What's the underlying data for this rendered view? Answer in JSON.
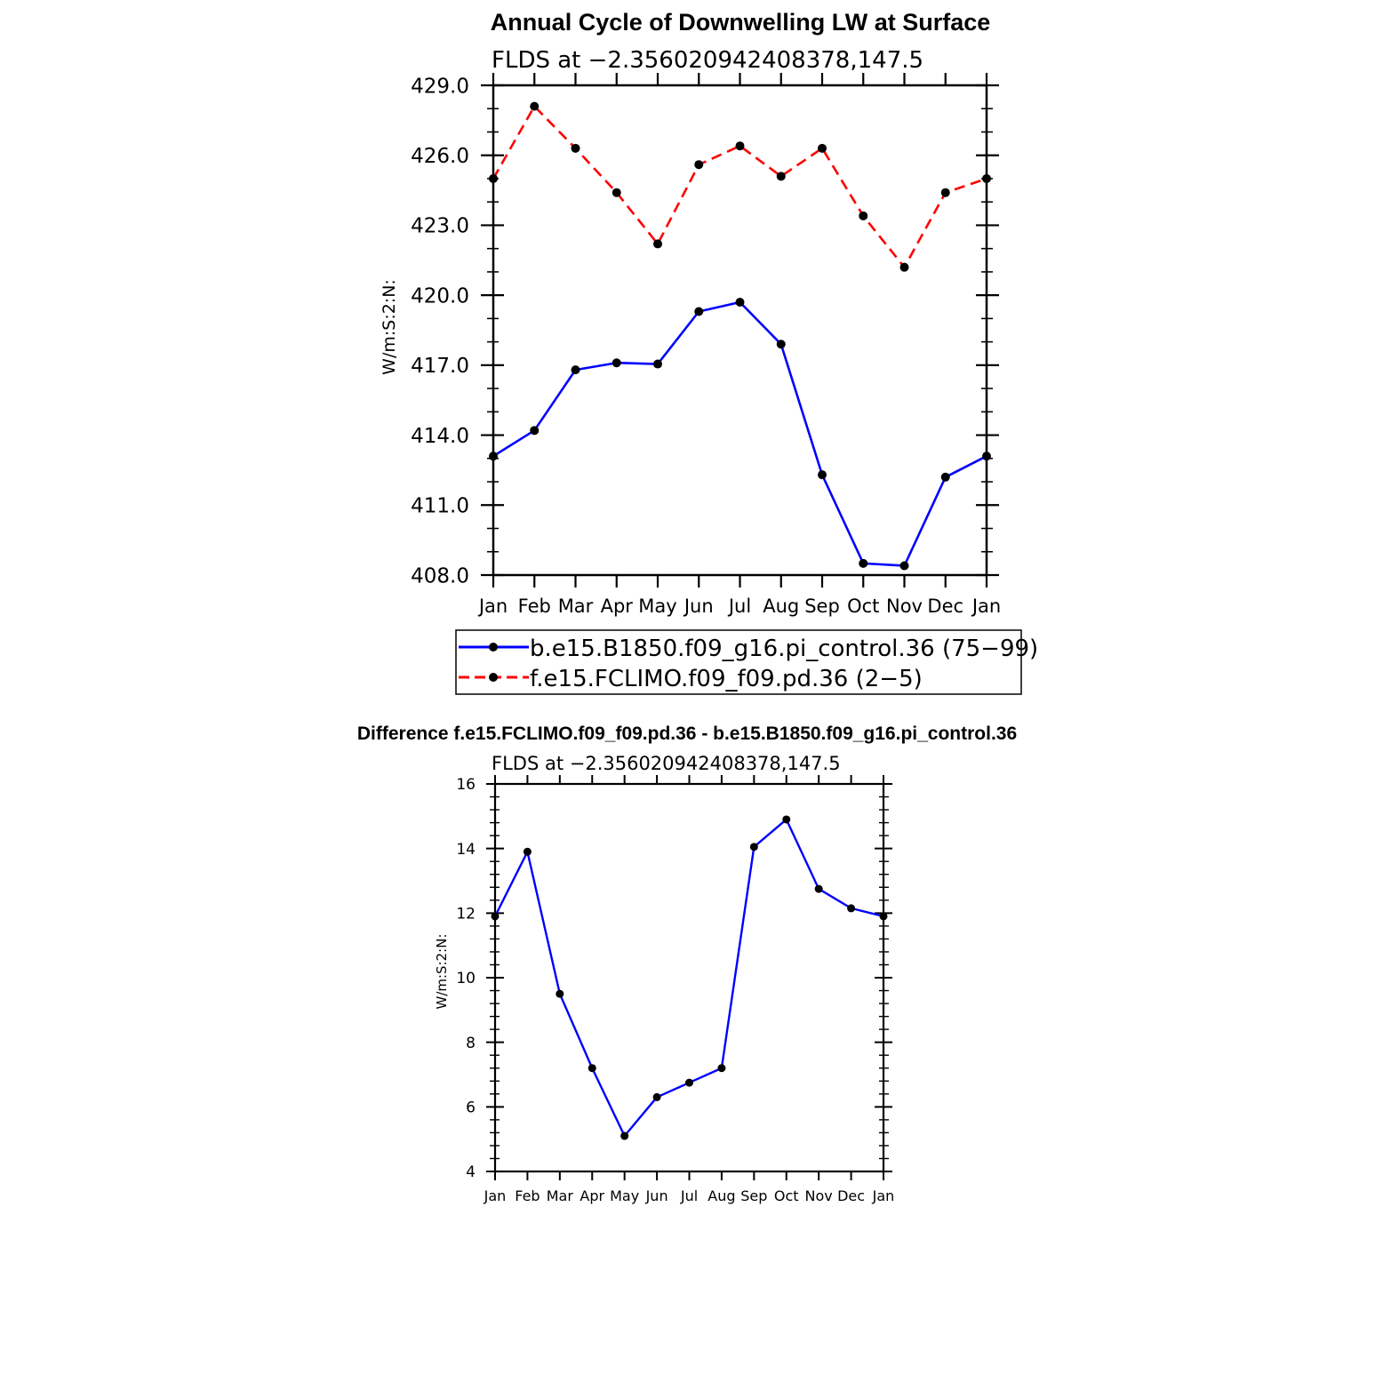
{
  "chart_data": [
    {
      "type": "line",
      "title": "Annual Cycle of Downwelling LW at Surface",
      "subtitle": "FLDS at −2.356020942408378,147.5",
      "xlabel": "",
      "ylabel": "W/m:S:2:N:",
      "categories": [
        "Jan",
        "Feb",
        "Mar",
        "Apr",
        "May",
        "Jun",
        "Jul",
        "Aug",
        "Sep",
        "Oct",
        "Nov",
        "Dec",
        "Jan"
      ],
      "ylim": [
        408.0,
        429.0
      ],
      "yticks": [
        "408.0",
        "411.0",
        "414.0",
        "417.0",
        "420.0",
        "423.0",
        "426.0",
        "429.0"
      ],
      "legend_position": "below",
      "series": [
        {
          "name": "b.e15.B1850.f09_g16.pi_control.36 (75−99)",
          "color": "#0000ff",
          "dash": "solid",
          "values": [
            413.1,
            414.2,
            416.8,
            417.1,
            417.05,
            419.3,
            419.7,
            417.9,
            412.3,
            408.5,
            408.4,
            412.2,
            413.1
          ]
        },
        {
          "name": "f.e15.FCLIMO.f09_f09.pd.36 (2−5)",
          "color": "#ff0000",
          "dash": "dashed",
          "values": [
            425.0,
            428.1,
            426.3,
            424.4,
            422.2,
            425.6,
            426.4,
            425.1,
            426.3,
            423.4,
            421.2,
            424.4,
            425.0
          ]
        }
      ]
    },
    {
      "type": "line",
      "title": "Difference f.e15.FCLIMO.f09_f09.pd.36 - b.e15.B1850.f09_g16.pi_control.36",
      "subtitle": "FLDS at −2.356020942408378,147.5",
      "xlabel": "",
      "ylabel": "W/m:S:2:N:",
      "categories": [
        "Jan",
        "Feb",
        "Mar",
        "Apr",
        "May",
        "Jun",
        "Jul",
        "Aug",
        "Sep",
        "Oct",
        "Nov",
        "Dec",
        "Jan"
      ],
      "ylim": [
        4,
        16
      ],
      "yticks": [
        "4",
        "6",
        "8",
        "10",
        "12",
        "14",
        "16"
      ],
      "series": [
        {
          "color": "#0000ff",
          "dash": "solid",
          "values": [
            11.9,
            13.9,
            9.5,
            7.2,
            5.1,
            6.3,
            6.75,
            7.2,
            14.05,
            14.9,
            12.75,
            12.15,
            11.9
          ]
        }
      ]
    }
  ]
}
